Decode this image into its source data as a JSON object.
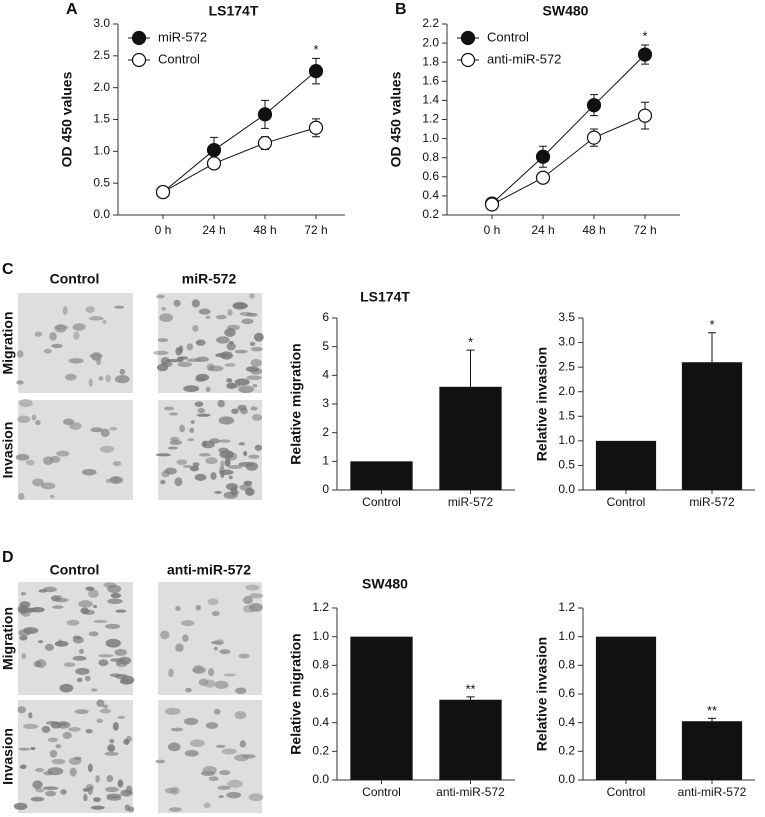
{
  "chart_data": [
    {
      "type": "line",
      "panel": "A",
      "title": "LS174T",
      "ylabel": "OD 450 values",
      "categories": [
        "0 h",
        "24 h",
        "48 h",
        "72 h"
      ],
      "series": [
        {
          "name": "miR-572",
          "color": "#111111",
          "marker": "filled",
          "values": [
            0.36,
            1.02,
            1.58,
            2.26
          ],
          "errors": [
            0.03,
            0.2,
            0.22,
            0.2
          ]
        },
        {
          "name": "Control",
          "color": "#111111",
          "marker": "open",
          "values": [
            0.36,
            0.81,
            1.13,
            1.37
          ],
          "errors": [
            0.03,
            0.06,
            0.1,
            0.14
          ]
        }
      ],
      "ylim": [
        0,
        3
      ],
      "yticks": [
        {
          "value": 0,
          "label": "0.0"
        },
        0.5,
        {
          "value": 1,
          "label": "1.0"
        },
        1.5,
        {
          "value": 2,
          "label": "2.0"
        },
        2.5,
        {
          "value": 3,
          "label": "3.0"
        }
      ],
      "legend": "upper left",
      "annotations": [
        "*"
      ]
    },
    {
      "type": "line",
      "panel": "B",
      "title": "SW480",
      "ylabel": "OD 450 values",
      "categories": [
        "0 h",
        "24 h",
        "48 h",
        "72 h"
      ],
      "series": [
        {
          "name": "Control",
          "color": "#111111",
          "marker": "filled",
          "values": [
            0.32,
            0.81,
            1.35,
            1.88
          ],
          "errors": [
            0.03,
            0.11,
            0.11,
            0.1
          ]
        },
        {
          "name": "anti-miR-572",
          "color": "#111111",
          "marker": "open",
          "values": [
            0.31,
            0.59,
            1.01,
            1.24
          ],
          "errors": [
            0.03,
            0.05,
            0.09,
            0.14
          ]
        }
      ],
      "ylim": [
        0.2,
        2.2
      ],
      "yticks": [
        0.2,
        0.4,
        0.6,
        0.8,
        {
          "value": 1,
          "label": "1.0"
        },
        1.2,
        1.4,
        1.6,
        1.8,
        {
          "value": 2,
          "label": "2.0"
        },
        2.2
      ],
      "legend": "upper left",
      "annotations": [
        "*"
      ]
    },
    {
      "type": "bar",
      "ylabel": "Relative migration",
      "categories": [
        "Control",
        "miR-572"
      ],
      "values": [
        1,
        3.6
      ],
      "errors": [
        null,
        1.28
      ],
      "color": "#111111",
      "ylim": [
        0,
        6
      ],
      "yticks": [
        0,
        1,
        2,
        3,
        4,
        5,
        6
      ],
      "annotations": [
        "*"
      ]
    },
    {
      "type": "bar",
      "ylabel": "Relative invasion",
      "categories": [
        "Control",
        "miR-572"
      ],
      "values": [
        1,
        2.6
      ],
      "errors": [
        null,
        0.6
      ],
      "color": "#111111",
      "ylim": [
        0,
        3.5
      ],
      "yticks": [
        {
          "value": 0,
          "label": "0.0"
        },
        0.5,
        {
          "value": 1,
          "label": "1.0"
        },
        1.5,
        {
          "value": 2,
          "label": "2.0"
        },
        2.5,
        {
          "value": 3,
          "label": "3.0"
        },
        3.5
      ],
      "annotations": [
        "*"
      ]
    },
    {
      "type": "bar",
      "ylabel": "Relative migration",
      "categories": [
        "Control",
        "anti-miR-572"
      ],
      "values": [
        1,
        0.56
      ],
      "errors": [
        null,
        0.02
      ],
      "color": "#111111",
      "ylim": [
        0,
        1.2
      ],
      "yticks": [
        {
          "value": 0,
          "label": "0.0"
        },
        0.2,
        0.4,
        0.6,
        0.8,
        {
          "value": 1,
          "label": "1.0"
        },
        1.2
      ],
      "annotations": [
        "**"
      ]
    },
    {
      "type": "bar",
      "ylabel": "Relative invasion",
      "categories": [
        "Control",
        "anti-miR-572"
      ],
      "values": [
        1,
        0.41
      ],
      "errors": [
        null,
        0.02
      ],
      "color": "#111111",
      "ylim": [
        0,
        1.2
      ],
      "yticks": [
        {
          "value": 0,
          "label": "0.0"
        },
        0.2,
        0.4,
        0.6,
        0.8,
        {
          "value": 1,
          "label": "1.0"
        },
        1.2
      ],
      "annotations": [
        "**"
      ]
    }
  ],
  "sections": [
    {
      "panel": "C",
      "title": "LS174T",
      "columns": [
        "Control",
        "miR-572"
      ],
      "rows": [
        "Migration",
        "Invasion"
      ]
    },
    {
      "panel": "D",
      "title": "SW480",
      "columns": [
        "Control",
        "anti-miR-572"
      ],
      "rows": [
        "Migration",
        "Invasion"
      ]
    }
  ]
}
